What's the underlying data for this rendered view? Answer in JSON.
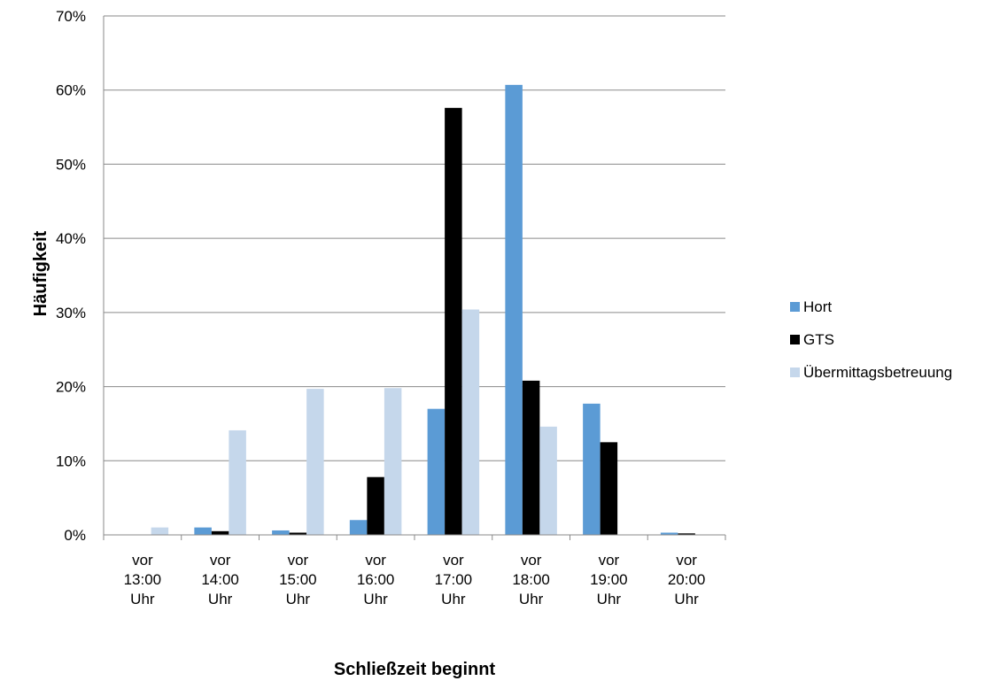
{
  "chart_data": {
    "type": "bar",
    "title": "",
    "xlabel": "Schließzeit beginnt",
    "ylabel": "Häufigkeit",
    "ylim": [
      0,
      70
    ],
    "yticks": [
      "0%",
      "10%",
      "20%",
      "30%",
      "40%",
      "50%",
      "60%",
      "70%"
    ],
    "grid": true,
    "legend_position": "right",
    "categories": [
      [
        "vor",
        "13:00",
        "Uhr"
      ],
      [
        "vor",
        "14:00",
        "Uhr"
      ],
      [
        "vor",
        "15:00",
        "Uhr"
      ],
      [
        "vor",
        "16:00",
        "Uhr"
      ],
      [
        "vor",
        "17:00",
        "Uhr"
      ],
      [
        "vor",
        "18:00",
        "Uhr"
      ],
      [
        "vor",
        "19:00",
        "Uhr"
      ],
      [
        "vor",
        "20:00",
        "Uhr"
      ]
    ],
    "series": [
      {
        "name": "Hort",
        "color": "#5b9bd5",
        "values": [
          0,
          1.0,
          0.6,
          2.0,
          17.0,
          60.7,
          17.7,
          0.3
        ]
      },
      {
        "name": "GTS",
        "color": "#000000",
        "values": [
          0,
          0.5,
          0.3,
          7.8,
          57.6,
          20.8,
          12.5,
          0.2
        ]
      },
      {
        "name": "Übermittagsbetreuung",
        "color": "#c5d7eb",
        "values": [
          1.0,
          14.1,
          19.7,
          19.8,
          30.4,
          14.6,
          0,
          0
        ]
      }
    ]
  }
}
